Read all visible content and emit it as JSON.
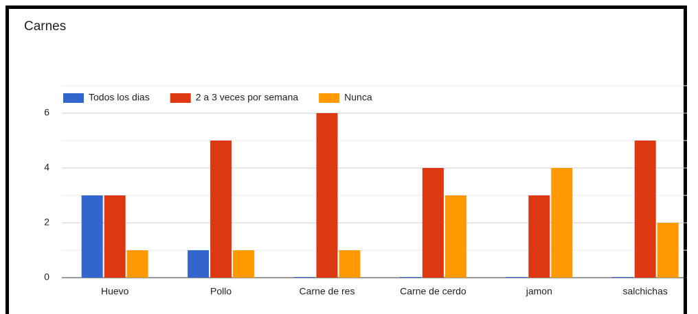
{
  "chart_data": {
    "type": "bar",
    "title": "Carnes",
    "categories": [
      "Huevo",
      "Pollo",
      "Carne de res",
      "Carne de cerdo",
      "jamon",
      "salchichas"
    ],
    "series": [
      {
        "name": "Todos los dias",
        "color": "#3366cc",
        "values": [
          3,
          1,
          0,
          0,
          0,
          0
        ]
      },
      {
        "name": "2 a 3 veces por semana",
        "color": "#dc3912",
        "values": [
          3,
          5,
          6,
          4,
          3,
          5
        ]
      },
      {
        "name": "Nunca",
        "color": "#ff9900",
        "values": [
          1,
          1,
          1,
          3,
          4,
          2
        ]
      }
    ],
    "ylim": [
      0,
      7
    ],
    "yticks": [
      0,
      2,
      4,
      6
    ],
    "minor_yticks": [
      1,
      3,
      5,
      7
    ],
    "grid": true,
    "legend": "top"
  }
}
